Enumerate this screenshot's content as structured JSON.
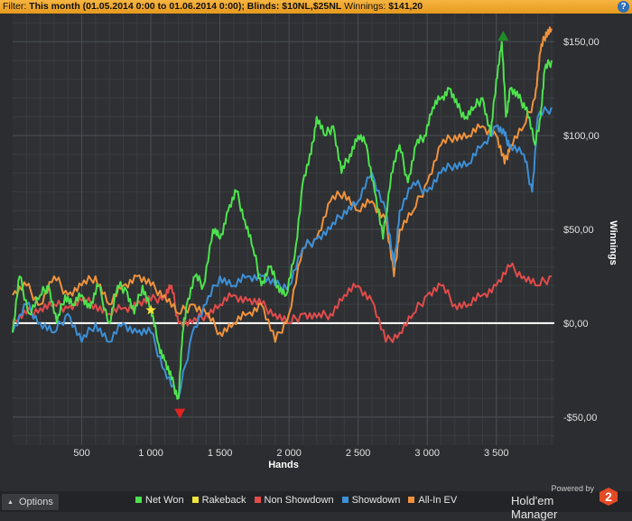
{
  "filter": {
    "label": "Filter:",
    "text": "This month (01.05.2014 0:00 to 01.06.2014 0:00); Blinds: $10NL,$25NL",
    "winnings_label": "Winnings:",
    "winnings_value": "$141,20",
    "help_icon": "?"
  },
  "options": {
    "label": "Options"
  },
  "brand": {
    "powered_by": "Powered by",
    "name": "Hold'em Manager",
    "logo_text": "2"
  },
  "chart_data": {
    "type": "line",
    "xlabel": "Hands",
    "ylabel": "Winnings",
    "xlim": [
      0,
      3920
    ],
    "ylim": [
      -65,
      165
    ],
    "xticks": [
      500,
      1000,
      1500,
      2000,
      2500,
      3000,
      3500
    ],
    "xtick_labels": [
      "500",
      "1 000",
      "1 500",
      "2 000",
      "2 500",
      "3 000",
      "3 500"
    ],
    "yticks": [
      -50,
      0,
      50,
      100,
      150
    ],
    "ytick_labels": [
      "-$50,00",
      "$0,00",
      "$50,00",
      "$100,00",
      "$150,00"
    ],
    "grid": true,
    "legend_position": "bottom",
    "series": [
      {
        "name": "Net Won",
        "color": "#4ee34e",
        "x": [
          0,
          50,
          120,
          200,
          260,
          320,
          380,
          440,
          500,
          560,
          620,
          700,
          760,
          820,
          880,
          940,
          1000,
          1050,
          1100,
          1150,
          1200,
          1230,
          1260,
          1320,
          1380,
          1450,
          1500,
          1560,
          1620,
          1680,
          1740,
          1800,
          1860,
          1920,
          1980,
          2040,
          2100,
          2160,
          2200,
          2260,
          2320,
          2380,
          2440,
          2500,
          2560,
          2620,
          2680,
          2740,
          2800,
          2860,
          2920,
          2980,
          3040,
          3100,
          3160,
          3220,
          3280,
          3340,
          3400,
          3460,
          3500,
          3540,
          3570,
          3600,
          3660,
          3720,
          3780,
          3820,
          3850,
          3900
        ],
        "y": [
          -5,
          25,
          5,
          15,
          20,
          0,
          15,
          10,
          15,
          8,
          20,
          0,
          20,
          18,
          5,
          20,
          8,
          -10,
          -20,
          -30,
          -40,
          -5,
          10,
          25,
          20,
          50,
          45,
          60,
          70,
          55,
          40,
          20,
          30,
          20,
          15,
          35,
          75,
          90,
          110,
          100,
          105,
          80,
          90,
          100,
          95,
          70,
          45,
          80,
          95,
          75,
          95,
          100,
          115,
          120,
          125,
          115,
          110,
          115,
          120,
          100,
          130,
          150,
          110,
          125,
          120,
          115,
          95,
          110,
          135,
          140
        ]
      },
      {
        "name": "Rakeback",
        "color": "#f0e43a",
        "x": [
          1000
        ],
        "y": [
          7
        ]
      },
      {
        "name": "Non Showdown",
        "color": "#e24b4b",
        "x": [
          0,
          100,
          200,
          300,
          400,
          500,
          600,
          700,
          800,
          900,
          1000,
          1100,
          1150,
          1200,
          1300,
          1400,
          1500,
          1600,
          1700,
          1800,
          1900,
          2000,
          2100,
          2200,
          2300,
          2400,
          2500,
          2600,
          2700,
          2800,
          2900,
          3000,
          3100,
          3200,
          3300,
          3400,
          3500,
          3600,
          3700,
          3800,
          3900
        ],
        "y": [
          0,
          5,
          8,
          10,
          8,
          12,
          10,
          5,
          8,
          10,
          12,
          15,
          20,
          0,
          0,
          5,
          10,
          15,
          12,
          10,
          5,
          0,
          5,
          3,
          5,
          15,
          20,
          12,
          -10,
          -5,
          5,
          15,
          20,
          10,
          10,
          15,
          20,
          30,
          25,
          20,
          25
        ]
      },
      {
        "name": "Showdown",
        "color": "#3d8fd6",
        "x": [
          0,
          100,
          200,
          300,
          400,
          500,
          600,
          700,
          800,
          900,
          1000,
          1100,
          1200,
          1300,
          1400,
          1500,
          1600,
          1700,
          1800,
          1900,
          2000,
          2100,
          2200,
          2300,
          2400,
          2500,
          2600,
          2700,
          2760,
          2800,
          2900,
          3000,
          3100,
          3200,
          3300,
          3400,
          3500,
          3560,
          3600,
          3700,
          3760,
          3800,
          3900
        ],
        "y": [
          -5,
          10,
          0,
          -5,
          5,
          -10,
          0,
          -10,
          0,
          -5,
          -5,
          -25,
          -40,
          -5,
          10,
          25,
          20,
          25,
          25,
          20,
          20,
          40,
          45,
          50,
          60,
          65,
          80,
          60,
          30,
          60,
          75,
          70,
          80,
          85,
          85,
          95,
          105,
          100,
          95,
          90,
          70,
          110,
          115
        ]
      },
      {
        "name": "All-In EV",
        "color": "#f0923c",
        "x": [
          0,
          100,
          200,
          300,
          400,
          500,
          600,
          700,
          800,
          900,
          1000,
          1100,
          1200,
          1300,
          1400,
          1500,
          1600,
          1700,
          1800,
          1900,
          2000,
          2100,
          2200,
          2300,
          2400,
          2500,
          2600,
          2700,
          2760,
          2800,
          2900,
          3000,
          3100,
          3200,
          3300,
          3400,
          3500,
          3560,
          3600,
          3700,
          3780,
          3820,
          3860,
          3900
        ],
        "y": [
          15,
          20,
          10,
          25,
          15,
          20,
          25,
          10,
          20,
          25,
          20,
          15,
          5,
          10,
          5,
          -5,
          0,
          5,
          10,
          -10,
          5,
          40,
          45,
          65,
          70,
          60,
          65,
          55,
          25,
          50,
          60,
          75,
          95,
          100,
          100,
          105,
          100,
          85,
          95,
          105,
          120,
          145,
          155,
          157
        ]
      }
    ],
    "markers": [
      {
        "type": "max",
        "shape": "triangle-up",
        "color": "#1f8a2a",
        "x": 3550,
        "y": 153
      },
      {
        "type": "min",
        "shape": "triangle-down",
        "color": "#e02222",
        "x": 1210,
        "y": -48
      }
    ]
  }
}
